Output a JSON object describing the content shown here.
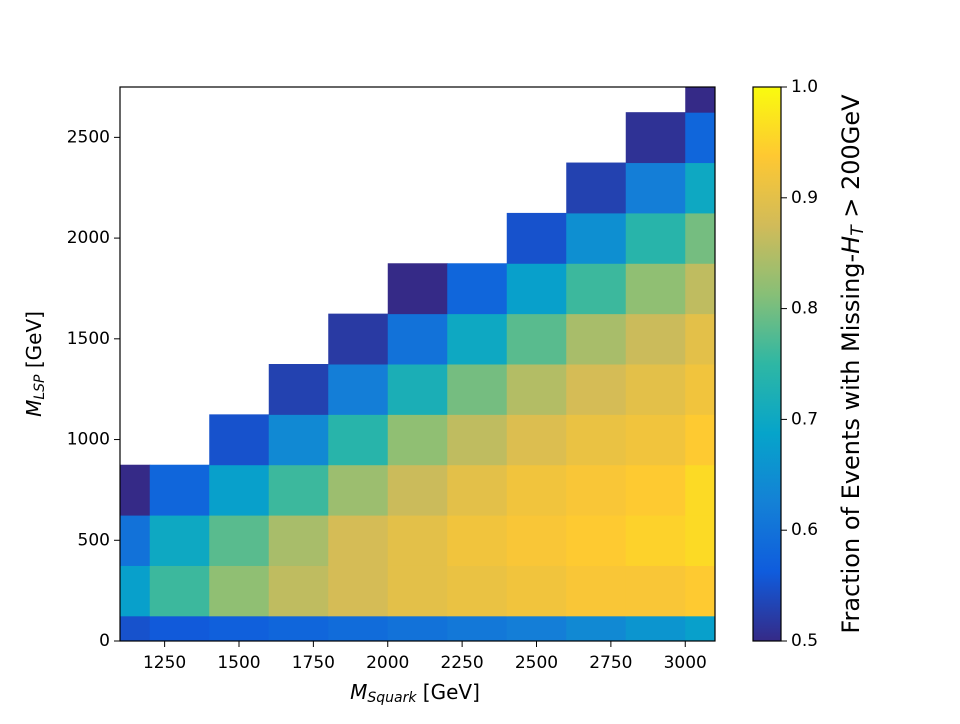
{
  "chart_data": {
    "type": "heatmap",
    "x": [
      1100,
      1300,
      1500,
      1700,
      1900,
      2100,
      2300,
      2500,
      2700,
      2900,
      3100
    ],
    "y": [
      0,
      250,
      500,
      750,
      1000,
      1250,
      1500,
      1750,
      2000,
      2250,
      2500,
      2750
    ],
    "z": [
      [
        0.55,
        0.56,
        0.57,
        0.58,
        0.59,
        0.6,
        0.61,
        0.62,
        0.64,
        0.66,
        0.68
      ],
      [
        0.68,
        0.76,
        0.82,
        0.86,
        0.88,
        0.9,
        0.91,
        0.92,
        0.93,
        0.93,
        0.94
      ],
      [
        0.6,
        0.7,
        0.78,
        0.84,
        0.88,
        0.9,
        0.92,
        0.93,
        0.94,
        0.95,
        0.96
      ],
      [
        0.5,
        0.58,
        0.68,
        0.76,
        0.83,
        0.87,
        0.9,
        0.92,
        0.93,
        0.94,
        0.96
      ],
      [
        null,
        null,
        0.55,
        0.64,
        0.74,
        0.82,
        0.86,
        0.89,
        0.91,
        0.92,
        0.94
      ],
      [
        null,
        null,
        null,
        0.53,
        0.62,
        0.72,
        0.8,
        0.85,
        0.88,
        0.9,
        0.92
      ],
      [
        null,
        null,
        null,
        null,
        0.52,
        0.6,
        0.7,
        0.78,
        0.84,
        0.87,
        0.9
      ],
      [
        null,
        null,
        null,
        null,
        null,
        0.5,
        0.58,
        0.68,
        0.76,
        0.82,
        0.86
      ],
      [
        null,
        null,
        null,
        null,
        null,
        null,
        null,
        0.55,
        0.65,
        0.74,
        0.8
      ],
      [
        null,
        null,
        null,
        null,
        null,
        null,
        null,
        null,
        0.53,
        0.62,
        0.7
      ],
      [
        null,
        null,
        null,
        null,
        null,
        null,
        null,
        null,
        null,
        0.51,
        0.58
      ],
      [
        null,
        null,
        null,
        null,
        null,
        null,
        null,
        null,
        null,
        null,
        0.5
      ]
    ],
    "xlim": [
      1100,
      3100
    ],
    "ylim": [
      0,
      2750
    ],
    "xticks": [
      1250,
      1500,
      1750,
      2000,
      2250,
      2500,
      2750,
      3000
    ],
    "yticks": [
      0,
      500,
      1000,
      1500,
      2000,
      2500
    ],
    "xlabel": {
      "symbol": "M",
      "sub": "Squark",
      "unit": " [GeV]"
    },
    "ylabel": {
      "symbol": "M",
      "sub": "LSP",
      "unit": " [GeV]"
    },
    "colorbar": {
      "lim": [
        0.5,
        1
      ],
      "ticks": [
        0.5,
        0.6,
        0.7,
        0.8,
        0.9,
        {
          "value": 1,
          "label": "1.0"
        }
      ],
      "label": {
        "before": "Fraction of Events with Missing-",
        "symbol": "H",
        "sub": "T",
        "after": " > 200GeV"
      },
      "colormap": [
        "#352a87",
        "#0f5cdd",
        "#1481d6",
        "#06a4ca",
        "#2eb7a4",
        "#87bf77",
        "#d1bb59",
        "#fec832",
        "#f9fb0e"
      ]
    }
  }
}
